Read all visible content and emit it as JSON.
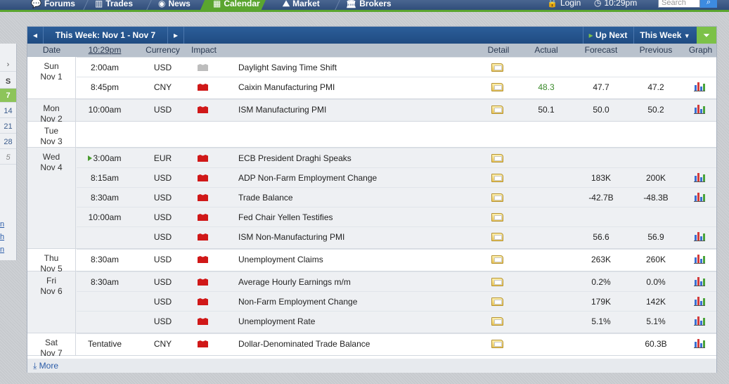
{
  "nav": {
    "items": [
      {
        "label": "Forums",
        "icon": "forum-icon"
      },
      {
        "label": "Trades",
        "icon": "trades-icon"
      },
      {
        "label": "News",
        "icon": "globe-icon"
      },
      {
        "label": "Calendar",
        "icon": "calendar-icon",
        "active": true
      },
      {
        "label": "Market",
        "icon": "market-icon"
      },
      {
        "label": "Brokers",
        "icon": "brokers-icon"
      }
    ],
    "login_label": "Login",
    "clock": "10:29pm",
    "search_placeholder": "Search"
  },
  "minical": {
    "arrow": "›",
    "header": "S",
    "days": [
      "7",
      "14",
      "21",
      "28",
      "5"
    ],
    "links": [
      "n",
      "h",
      "n"
    ]
  },
  "toolbar": {
    "prev_icon": "◂",
    "week_label": "This Week: Nov 1 - Nov 7",
    "next_icon": "▸",
    "up_next_label": "Up Next",
    "this_week_label": "This Week",
    "filter_icon": "filter-icon"
  },
  "columns": {
    "date": "Date",
    "time": "10:29pm",
    "currency": "Currency",
    "impact": "Impact",
    "detail": "Detail",
    "actual": "Actual",
    "forecast": "Forecast",
    "previous": "Previous",
    "graph": "Graph"
  },
  "days": [
    {
      "dow": "Sun",
      "date": "Nov 1",
      "events": [
        {
          "time": "2:00am",
          "currency": "USD",
          "impact": "gray",
          "name": "Daylight Saving Time Shift",
          "detail": true,
          "actual": "",
          "forecast": "",
          "previous": "",
          "graph": false
        },
        {
          "time": "8:45pm",
          "currency": "CNY",
          "impact": "red",
          "name": "Caixin Manufacturing PMI",
          "detail": true,
          "actual": "48.3",
          "actual_color": "green",
          "forecast": "47.7",
          "previous": "47.2",
          "graph": true
        }
      ]
    },
    {
      "dow": "Mon",
      "date": "Nov 2",
      "events": [
        {
          "time": "10:00am",
          "currency": "USD",
          "impact": "red",
          "name": "ISM Manufacturing PMI",
          "detail": true,
          "actual": "50.1",
          "forecast": "50.0",
          "previous": "50.2",
          "graph": true
        }
      ]
    },
    {
      "dow": "Tue",
      "date": "Nov 3",
      "events": []
    },
    {
      "dow": "Wed",
      "date": "Nov 4",
      "events": [
        {
          "time": "3:00am",
          "upnext": true,
          "currency": "EUR",
          "impact": "red",
          "name": "ECB President Draghi Speaks",
          "detail": true,
          "actual": "",
          "forecast": "",
          "previous": "",
          "graph": false
        },
        {
          "time": "8:15am",
          "currency": "USD",
          "impact": "red",
          "name": "ADP Non-Farm Employment Change",
          "detail": true,
          "actual": "",
          "forecast": "183K",
          "previous": "200K",
          "graph": true
        },
        {
          "time": "8:30am",
          "currency": "USD",
          "impact": "red",
          "name": "Trade Balance",
          "detail": true,
          "actual": "",
          "forecast": "-42.7B",
          "previous": "-48.3B",
          "graph": true
        },
        {
          "time": "10:00am",
          "currency": "USD",
          "impact": "red",
          "name": "Fed Chair Yellen Testifies",
          "detail": true,
          "actual": "",
          "forecast": "",
          "previous": "",
          "graph": false
        },
        {
          "time": "",
          "currency": "USD",
          "impact": "red",
          "name": "ISM Non-Manufacturing PMI",
          "detail": true,
          "actual": "",
          "forecast": "56.6",
          "previous": "56.9",
          "graph": true
        }
      ]
    },
    {
      "dow": "Thu",
      "date": "Nov 5",
      "events": [
        {
          "time": "8:30am",
          "currency": "USD",
          "impact": "red",
          "name": "Unemployment Claims",
          "detail": true,
          "actual": "",
          "forecast": "263K",
          "previous": "260K",
          "graph": true
        }
      ]
    },
    {
      "dow": "Fri",
      "date": "Nov 6",
      "events": [
        {
          "time": "8:30am",
          "currency": "USD",
          "impact": "red",
          "name": "Average Hourly Earnings m/m",
          "detail": true,
          "actual": "",
          "forecast": "0.2%",
          "previous": "0.0%",
          "graph": true
        },
        {
          "time": "",
          "currency": "USD",
          "impact": "red",
          "name": "Non-Farm Employment Change",
          "detail": true,
          "actual": "",
          "forecast": "179K",
          "previous": "142K",
          "graph": true
        },
        {
          "time": "",
          "currency": "USD",
          "impact": "red",
          "name": "Unemployment Rate",
          "detail": true,
          "actual": "",
          "forecast": "5.1%",
          "previous": "5.1%",
          "graph": true
        }
      ]
    },
    {
      "dow": "Sat",
      "date": "Nov 7",
      "events": [
        {
          "time": "Tentative",
          "currency": "CNY",
          "impact": "red",
          "name": "Dollar-Denominated Trade Balance",
          "detail": true,
          "actual": "",
          "forecast": "",
          "previous": "60.3B",
          "graph": true
        }
      ]
    }
  ],
  "more_label": "More",
  "colors": {
    "nav_bg": "#3a5a88",
    "accent_green": "#5aa52f",
    "toolbar_bg": "#245590",
    "impact_high": "#d01818",
    "impact_none": "#bdbdbd",
    "actual_better": "#3a8a2a"
  }
}
